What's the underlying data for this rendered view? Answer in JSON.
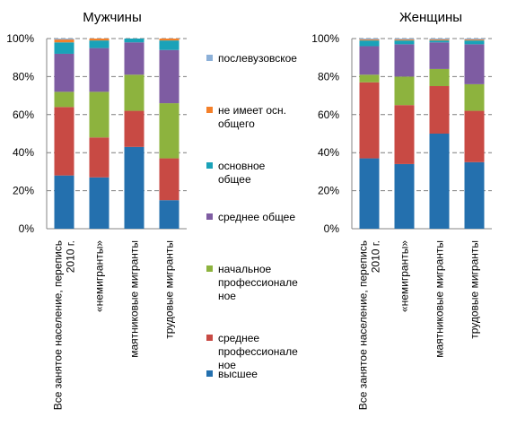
{
  "chart_data": [
    {
      "type": "bar",
      "stacked": true,
      "percent": true,
      "title": "Мужчины",
      "categories": [
        "Все занятое население, перепись 2010 г.",
        "«немигранты»",
        "маятниковые мигранты",
        "трудовые мигранты"
      ],
      "category_lines": [
        [
          "Все занятое население, перепись",
          "2010 г."
        ],
        [
          "«немигранты»"
        ],
        [
          "маятниковые мигранты"
        ],
        [
          "трудовые мигранты"
        ]
      ],
      "ylim": [
        0,
        100
      ],
      "yticks": [
        "0%",
        "20%",
        "40%",
        "60%",
        "80%",
        "100%"
      ],
      "grid": true,
      "series": [
        {
          "name": "высшее",
          "values": [
            28,
            27,
            43,
            15
          ]
        },
        {
          "name": "среднее профессиональное",
          "values": [
            36,
            21,
            19,
            22
          ]
        },
        {
          "name": "начальное профессиональное",
          "values": [
            8,
            24,
            19,
            29
          ]
        },
        {
          "name": "среднее общее",
          "values": [
            20,
            23,
            17,
            28
          ]
        },
        {
          "name": "основное общее",
          "values": [
            6,
            4,
            2,
            5
          ]
        },
        {
          "name": "не имеет осн. общего",
          "values": [
            1.5,
            1,
            0,
            1
          ]
        },
        {
          "name": "послевузовское",
          "values": [
            0.5,
            0,
            0,
            0
          ]
        }
      ]
    },
    {
      "type": "bar",
      "stacked": true,
      "percent": true,
      "title": "Женщины",
      "categories": [
        "Все занятое население, перепись 2010 г.",
        "«немигранты»",
        "маятниковые мигранты",
        "трудовые мигранты"
      ],
      "category_lines": [
        [
          "Все занятое население, перепись",
          "2010 г."
        ],
        [
          "«немигранты»"
        ],
        [
          "маятниковые мигранты"
        ],
        [
          "трудовые мигранты"
        ]
      ],
      "ylim": [
        0,
        100
      ],
      "yticks": [
        "0%",
        "20%",
        "40%",
        "60%",
        "80%",
        "100%"
      ],
      "grid": true,
      "series": [
        {
          "name": "высшее",
          "values": [
            37,
            34,
            50,
            35
          ]
        },
        {
          "name": "среднее профессиональное",
          "values": [
            40,
            31,
            25,
            27
          ]
        },
        {
          "name": "начальное профессиональное",
          "values": [
            4,
            15,
            9,
            14
          ]
        },
        {
          "name": "среднее общее",
          "values": [
            15,
            17,
            14,
            21
          ]
        },
        {
          "name": "основное общее",
          "values": [
            3,
            2,
            1,
            2
          ]
        },
        {
          "name": "не имеет осн. общего",
          "values": [
            0.5,
            0.5,
            0.5,
            0.5
          ]
        },
        {
          "name": "послевузовское",
          "values": [
            0.5,
            0.5,
            0.5,
            0.5
          ]
        }
      ]
    }
  ],
  "legend": {
    "placement": "center",
    "items": [
      {
        "lines": [
          "послевузовское"
        ],
        "color": "#8CB0D8"
      },
      {
        "lines": [
          "не имеет  осн.",
          "общего"
        ],
        "color": "#F4802A"
      },
      {
        "lines": [
          "основное",
          "общее"
        ],
        "color": "#1AA2B8"
      },
      {
        "lines": [
          "среднее общее"
        ],
        "color": "#7E5CA2"
      },
      {
        "lines": [
          "начальное",
          "профессионале",
          "ное"
        ],
        "color": "#8DB33E"
      },
      {
        "lines": [
          "среднее",
          "профессионале",
          "ное"
        ],
        "color": "#C84A44"
      },
      {
        "lines": [
          "высшее"
        ],
        "color": "#2470AE"
      }
    ]
  },
  "series_colors": [
    "#2470AE",
    "#C84A44",
    "#8DB33E",
    "#7E5CA2",
    "#1AA2B8",
    "#F4802A",
    "#8CB0D8"
  ]
}
